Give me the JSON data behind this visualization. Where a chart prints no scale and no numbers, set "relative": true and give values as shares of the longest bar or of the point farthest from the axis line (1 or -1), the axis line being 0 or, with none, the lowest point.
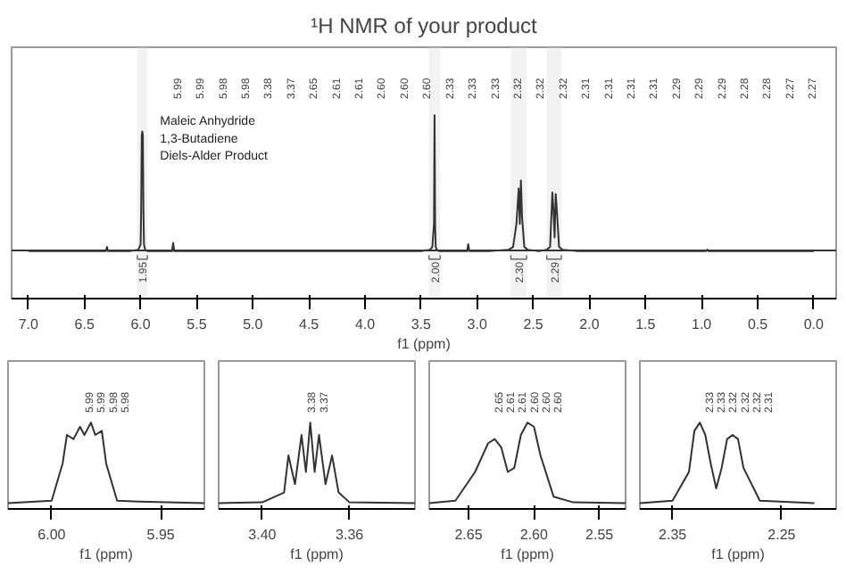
{
  "chart_data": [
    {
      "type": "line",
      "title": "¹H NMR of your product",
      "xlabel": "f1 (ppm)",
      "relative": true,
      "xlim": [
        7.15,
        -0.2
      ],
      "xticks": [
        {
          "value": 7,
          "label": "7.0"
        },
        {
          "value": 6.5,
          "label": "6.5"
        },
        {
          "value": 6,
          "label": "6.0"
        },
        {
          "value": 5.5,
          "label": "5.5"
        },
        {
          "value": 5,
          "label": "5.0"
        },
        {
          "value": 4.5,
          "label": "4.5"
        },
        {
          "value": 4,
          "label": "4.0"
        },
        {
          "value": 3.5,
          "label": "3.5"
        },
        {
          "value": 3,
          "label": "3.0"
        },
        {
          "value": 2.5,
          "label": "2.5"
        },
        {
          "value": 2,
          "label": "2.0"
        },
        {
          "value": 1.5,
          "label": "1.5"
        },
        {
          "value": 1,
          "label": "1.0"
        },
        {
          "value": 0.5,
          "label": "0.5"
        },
        {
          "value": 0,
          "label": "0.0"
        }
      ],
      "series": [
        {
          "color": "#333333",
          "x": [
            7.0,
            6.5,
            6.31,
            6.3,
            6.29,
            6.1,
            6.02,
            6.0,
            5.995,
            5.99,
            5.985,
            5.98,
            5.975,
            5.97,
            5.96,
            5.94,
            5.72,
            5.71,
            5.7,
            5.5,
            4.0,
            3.5,
            3.42,
            3.4,
            3.385,
            3.38,
            3.375,
            3.37,
            3.36,
            3.34,
            3.2,
            3.09,
            3.08,
            3.07,
            2.9,
            2.72,
            2.68,
            2.65,
            2.63,
            2.62,
            2.61,
            2.6,
            2.58,
            2.55,
            2.45,
            2.38,
            2.35,
            2.33,
            2.32,
            2.31,
            2.3,
            2.29,
            2.27,
            2.24,
            2.1,
            1.5,
            0.96,
            0.95,
            0.94,
            0.5,
            0.0
          ],
          "values": [
            0.0,
            0.0,
            0.0,
            0.03,
            0.0,
            0.0,
            0.01,
            0.05,
            0.3,
            0.85,
            0.88,
            0.85,
            0.3,
            0.05,
            0.01,
            0.0,
            0.0,
            0.06,
            0.0,
            0.0,
            0.0,
            0.0,
            0.01,
            0.03,
            0.2,
            1.0,
            0.2,
            0.03,
            0.01,
            0.0,
            0.0,
            0.0,
            0.05,
            0.0,
            0.0,
            0.01,
            0.03,
            0.2,
            0.46,
            0.2,
            0.52,
            0.25,
            0.03,
            0.01,
            0.0,
            0.01,
            0.03,
            0.43,
            0.3,
            0.1,
            0.42,
            0.3,
            0.03,
            0.01,
            0.0,
            0.0,
            0.0,
            0.01,
            0.0,
            0.0,
            0.0
          ]
        }
      ],
      "bands": [
        {
          "axis": "x",
          "from": 6.03,
          "to": 5.94,
          "label": "1.95"
        },
        {
          "axis": "x",
          "from": 3.43,
          "to": 3.33,
          "label": "2.00"
        },
        {
          "axis": "x",
          "from": 2.7,
          "to": 2.56,
          "label": "2.30"
        },
        {
          "axis": "x",
          "from": 2.38,
          "to": 2.25,
          "label": "2.29"
        }
      ],
      "annotations": [
        "Maleic Anhydride",
        "1,3-Butadiene",
        "Diels-Alder Product",
        "5.99",
        "5.99",
        "5.98",
        "5.98",
        "3.38",
        "3.37",
        "2.65",
        "2.61",
        "2.61",
        "2.60",
        "2.60",
        "2.60",
        "2.33",
        "2.33",
        "2.33",
        "2.32",
        "2.32",
        "2.32",
        "2.31",
        "2.31",
        "2.31",
        "2.31",
        "2.29",
        "2.29",
        "2.29",
        "2.28",
        "2.28",
        "2.27",
        "2.27"
      ]
    },
    {
      "type": "line",
      "xlabel": "f1 (ppm)",
      "relative": true,
      "xlim": [
        6.02,
        5.93
      ],
      "xticks": [
        {
          "value": 6.0,
          "label": "6.00"
        },
        {
          "value": 5.95,
          "label": "5.95"
        }
      ],
      "series": [
        {
          "color": "#333333",
          "x": [
            6.02,
            6.0,
            5.995,
            5.993,
            5.99,
            5.987,
            5.985,
            5.982,
            5.98,
            5.977,
            5.975,
            5.97,
            5.96,
            5.93
          ],
          "values": [
            0.02,
            0.05,
            0.5,
            0.85,
            0.8,
            0.95,
            0.85,
            1.0,
            0.85,
            0.9,
            0.5,
            0.05,
            0.04,
            0.02
          ]
        }
      ],
      "annotations": [
        "5.99",
        "5.99",
        "5.98",
        "5.98"
      ]
    },
    {
      "type": "line",
      "xlabel": "f1 (ppm)",
      "relative": true,
      "xlim": [
        3.42,
        3.33
      ],
      "xticks": [
        {
          "value": 3.4,
          "label": "3.40"
        },
        {
          "value": 3.36,
          "label": "3.36"
        }
      ],
      "series": [
        {
          "color": "#333333",
          "x": [
            3.42,
            3.4,
            3.39,
            3.388,
            3.385,
            3.382,
            3.38,
            3.378,
            3.376,
            3.374,
            3.371,
            3.368,
            3.365,
            3.36,
            3.33
          ],
          "values": [
            0.02,
            0.03,
            0.15,
            0.6,
            0.25,
            0.85,
            0.4,
            1.0,
            0.4,
            0.85,
            0.25,
            0.6,
            0.15,
            0.03,
            0.02
          ]
        }
      ],
      "annotations": [
        "3.38",
        "3.37"
      ]
    },
    {
      "type": "line",
      "xlabel": "f1 (ppm)",
      "relative": true,
      "xlim": [
        2.68,
        2.53
      ],
      "xticks": [
        {
          "value": 2.65,
          "label": "2.65"
        },
        {
          "value": 2.6,
          "label": "2.60"
        },
        {
          "value": 2.55,
          "label": "2.55"
        }
      ],
      "series": [
        {
          "color": "#333333",
          "x": [
            2.68,
            2.66,
            2.645,
            2.635,
            2.63,
            2.625,
            2.62,
            2.615,
            2.61,
            2.605,
            2.6,
            2.595,
            2.585,
            2.57,
            2.53
          ],
          "values": [
            0.02,
            0.05,
            0.4,
            0.75,
            0.8,
            0.7,
            0.4,
            0.45,
            0.85,
            1.0,
            0.95,
            0.6,
            0.1,
            0.03,
            0.02
          ]
        }
      ],
      "annotations": [
        "2.65",
        "2.61",
        "2.61",
        "2.60",
        "2.60",
        "2.60"
      ]
    },
    {
      "type": "line",
      "xlabel": "f1 (ppm)",
      "relative": true,
      "xlim": [
        2.38,
        2.2
      ],
      "xticks": [
        {
          "value": 2.35,
          "label": "2.35"
        },
        {
          "value": 2.25,
          "label": "2.25"
        }
      ],
      "series": [
        {
          "color": "#333333",
          "x": [
            2.38,
            2.35,
            2.335,
            2.33,
            2.325,
            2.32,
            2.315,
            2.31,
            2.305,
            2.3,
            2.295,
            2.29,
            2.285,
            2.27,
            2.22
          ],
          "values": [
            0.02,
            0.05,
            0.4,
            0.9,
            1.0,
            0.85,
            0.5,
            0.2,
            0.45,
            0.8,
            0.85,
            0.8,
            0.45,
            0.05,
            0.02
          ]
        }
      ],
      "annotations": [
        "2.33",
        "2.33",
        "2.32",
        "2.32",
        "2.32",
        "2.31"
      ]
    }
  ]
}
